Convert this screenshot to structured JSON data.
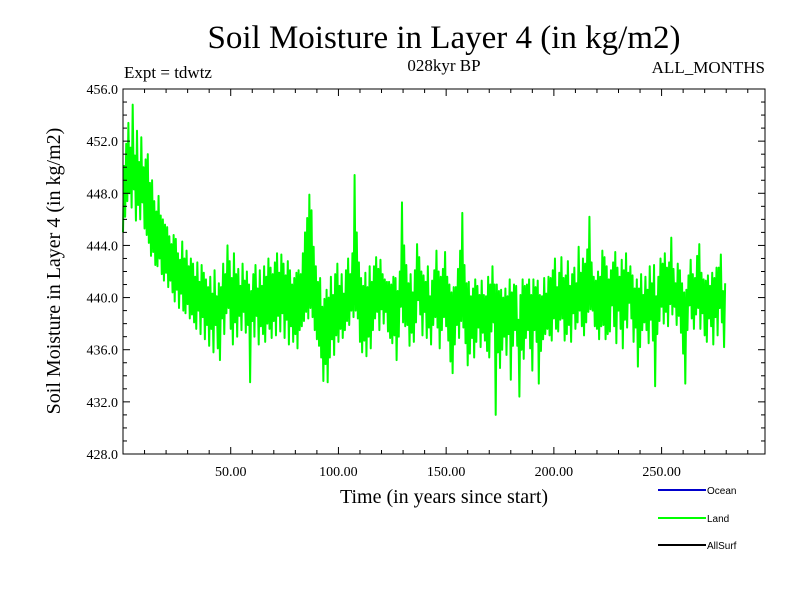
{
  "chart_data": {
    "type": "line",
    "title": "Soil Moisture in Layer 4 (in kg/m2)",
    "subtitle_left": "Expt = tdwtz",
    "subtitle_center": "028kyr BP",
    "subtitle_right": "ALL_MONTHS",
    "xlabel": "Time (in years since start)",
    "ylabel": "Soil Moisture in Layer 4 (in kg/m2)",
    "xlim": [
      0,
      298
    ],
    "ylim": [
      428.0,
      456.0
    ],
    "x_ticks": [
      50,
      100,
      150,
      200,
      250
    ],
    "x_tick_labels": [
      "50.00",
      "100.00",
      "150.00",
      "200.00",
      "250.00"
    ],
    "y_ticks": [
      428,
      432,
      436,
      440,
      444,
      448,
      452,
      456
    ],
    "y_tick_labels": [
      "428.0",
      "432.0",
      "436.0",
      "440.0",
      "444.0",
      "448.0",
      "452.0",
      "456.0"
    ],
    "legend": [
      {
        "name": "Ocean",
        "color": "#0000cc"
      },
      {
        "name": "Land",
        "color": "#00ff00"
      },
      {
        "name": "AllSurf",
        "color": "#000000"
      }
    ],
    "series": [
      {
        "name": "Land",
        "color": "#00ff00",
        "x_start": 0,
        "x_step": 0.5,
        "values": [
          445.0,
          450.1,
          446.2,
          451.8,
          447.4,
          453.4,
          448.0,
          451.5,
          446.9,
          454.8,
          448.3,
          450.9,
          445.9,
          452.8,
          447.1,
          450.4,
          446.0,
          452.3,
          447.3,
          450.0,
          445.3,
          450.6,
          444.8,
          451.0,
          444.2,
          448.8,
          443.2,
          449.0,
          443.5,
          447.4,
          442.5,
          446.6,
          442.4,
          447.8,
          443.0,
          446.3,
          441.8,
          446.0,
          441.3,
          445.6,
          441.9,
          445.4,
          440.8,
          444.7,
          441.3,
          444.1,
          440.4,
          444.8,
          439.7,
          444.5,
          440.6,
          443.4,
          439.2,
          442.9,
          440.3,
          444.3,
          439.0,
          443.0,
          438.8,
          443.6,
          439.5,
          442.4,
          438.4,
          443.0,
          438.7,
          442.6,
          438.1,
          441.6,
          437.6,
          442.7,
          439.0,
          441.2,
          437.2,
          442.5,
          438.5,
          441.9,
          436.8,
          441.4,
          437.9,
          440.8,
          436.3,
          441.6,
          437.6,
          440.3,
          435.8,
          442.1,
          437.9,
          440.1,
          436.1,
          441.1,
          435.2,
          440.8,
          438.4,
          442.6,
          437.2,
          441.8,
          438.8,
          444.0,
          439.2,
          442.8,
          437.6,
          441.5,
          436.4,
          443.4,
          438.1,
          441.8,
          437.0,
          442.2,
          438.6,
          440.9,
          437.5,
          442.6,
          438.9,
          441.3,
          437.3,
          442.0,
          437.9,
          441.0,
          433.5,
          440.5,
          438.2,
          441.8,
          437.0,
          442.5,
          438.6,
          440.7,
          436.4,
          442.1,
          437.8,
          440.9,
          437.2,
          442.4,
          436.6,
          441.6,
          438.0,
          443.0,
          437.6,
          442.3,
          436.9,
          441.8,
          438.2,
          442.7,
          437.1,
          443.4,
          438.6,
          441.9,
          437.4,
          443.3,
          438.8,
          442.6,
          436.9,
          441.7,
          438.3,
          442.8,
          436.4,
          442.1,
          437.8,
          441.0,
          436.6,
          441.5,
          437.2,
          441.9,
          436.1,
          442.1,
          437.5,
          441.8,
          437.8,
          443.4,
          438.2,
          445.0,
          438.9,
          446.1,
          438.4,
          447.9,
          439.2,
          446.7,
          438.5,
          443.9,
          437.5,
          442.4,
          436.8,
          441.2,
          436.3,
          441.5,
          435.4,
          439.3,
          433.6,
          439.9,
          434.9,
          440.6,
          433.5,
          440.0,
          435.4,
          441.6,
          436.8,
          440.2,
          435.6,
          441.8,
          437.1,
          442.6,
          436.6,
          440.9,
          437.6,
          441.8,
          436.9,
          440.3,
          437.5,
          442.1,
          438.2,
          443.0,
          437.9,
          441.8,
          439.0,
          443.4,
          438.5,
          449.4,
          439.0,
          445.0,
          438.4,
          442.7,
          436.6,
          441.5,
          435.8,
          440.9,
          436.7,
          441.9,
          435.5,
          440.8,
          437.0,
          442.4,
          436.1,
          441.2,
          437.5,
          442.4,
          438.4,
          443.1,
          438.9,
          442.2,
          437.5,
          442.9,
          439.1,
          441.8,
          438.0,
          441.4,
          438.9,
          441.2,
          437.4,
          441.2,
          436.9,
          441.0,
          436.5,
          441.6,
          437.1,
          441.5,
          435.2,
          440.5,
          437.0,
          442.0,
          439.3,
          447.3,
          438.1,
          444.0,
          437.8,
          442.5,
          437.9,
          441.1,
          436.3,
          441.8,
          437.3,
          440.4,
          436.6,
          442.1,
          438.1,
          444.1,
          439.8,
          443.1,
          438.7,
          442.0,
          437.1,
          441.7,
          438.9,
          441.2,
          436.9,
          442.4,
          437.7,
          440.1,
          436.4,
          441.3,
          437.9,
          442.1,
          438.5,
          443.6,
          437.7,
          442.0,
          436.1,
          441.6,
          437.5,
          442.2,
          438.5,
          443.5,
          437.8,
          441.6,
          436.7,
          441.0,
          435.1,
          440.4,
          434.2,
          440.8,
          436.4,
          440.8,
          437.9,
          442.2,
          436.9,
          443.6,
          438.2,
          446.5,
          437.7,
          442.5,
          436.5,
          441.1,
          434.8,
          441.2,
          435.7,
          440.1,
          436.9,
          440.7,
          435.4,
          441.4,
          436.6,
          440.9,
          437.7,
          440.2,
          436.2,
          441.3,
          437.3,
          440.2,
          436.7,
          440.1,
          435.9,
          441.6,
          435.4,
          441.0,
          437.4,
          442.4,
          438.1,
          441.0,
          431.0,
          441.0,
          435.8,
          440.5,
          434.6,
          440.6,
          436.0,
          440.0,
          437.0,
          440.7,
          435.6,
          440.1,
          437.2,
          441.4,
          433.7,
          440.4,
          436.3,
          441.0,
          437.5,
          440.9,
          436.3,
          438.3,
          432.4,
          440.2,
          436.0,
          441.4,
          435.3,
          440.9,
          436.9,
          441.0,
          437.5,
          441.4,
          436.1,
          440.2,
          434.4,
          441.4,
          437.5,
          440.8,
          436.6,
          441.3,
          433.4,
          440.2,
          435.9,
          440.1,
          436.8,
          441.5,
          437.2,
          440.3,
          437.6,
          441.6,
          437.1,
          441.5,
          436.7,
          442.1,
          438.4,
          443.0,
          437.6,
          440.8,
          437.4,
          441.9,
          438.3,
          443.1,
          438.4,
          441.5,
          436.7,
          441.7,
          437.2,
          442.8,
          437.9,
          440.9,
          436.6,
          441.8,
          438.8,
          442.3,
          437.6,
          441.1,
          438.1,
          443.9,
          439.0,
          441.9,
          437.8,
          443.0,
          437.1,
          442.6,
          438.1,
          443.7,
          438.9,
          446.2,
          439.1,
          442.7,
          439.0,
          441.6,
          437.8,
          441.3,
          437.6,
          442.0,
          436.8,
          441.6,
          437.8,
          443.6,
          437.9,
          443.1,
          436.8,
          442.4,
          437.2,
          441.4,
          437.4,
          442.1,
          439.4,
          442.7,
          437.8,
          443.5,
          436.5,
          442.3,
          439.0,
          441.6,
          437.6,
          442.9,
          436.1,
          442.1,
          438.3,
          443.4,
          437.7,
          441.9,
          439.6,
          442.4,
          438.4,
          441.7,
          436.6,
          440.7,
          437.7,
          441.4,
          434.7,
          440.7,
          436.2,
          441.8,
          437.5,
          440.2,
          438.1,
          441.6,
          437.5,
          440.6,
          436.5,
          442.4,
          438.3,
          441.1,
          436.7,
          442.5,
          433.2,
          440.1,
          437.2,
          441.6,
          438.2,
          443.0,
          439.3,
          442.6,
          438.0,
          443.4,
          438.9,
          442.3,
          437.8,
          442.7,
          439.5,
          444.6,
          438.7,
          442.2,
          439.3,
          441.1,
          437.9,
          442.6,
          438.6,
          442.1,
          437.3,
          441.1,
          435.7,
          440.4,
          433.4,
          440.6,
          437.5,
          441.7,
          439.4,
          442.9,
          438.4,
          441.8,
          437.6,
          441.5,
          438.7,
          443.2,
          439.2,
          444.1,
          437.6,
          441.9,
          438.8,
          441.4,
          437.1,
          441.3,
          436.6,
          441.7,
          438.4,
          440.9,
          437.8,
          441.9,
          436.4,
          441.5,
          438.5,
          442.3,
          437.1,
          442.3,
          439.2,
          443.3,
          438.1,
          440.5,
          436.2,
          441.1
        ]
      }
    ]
  }
}
